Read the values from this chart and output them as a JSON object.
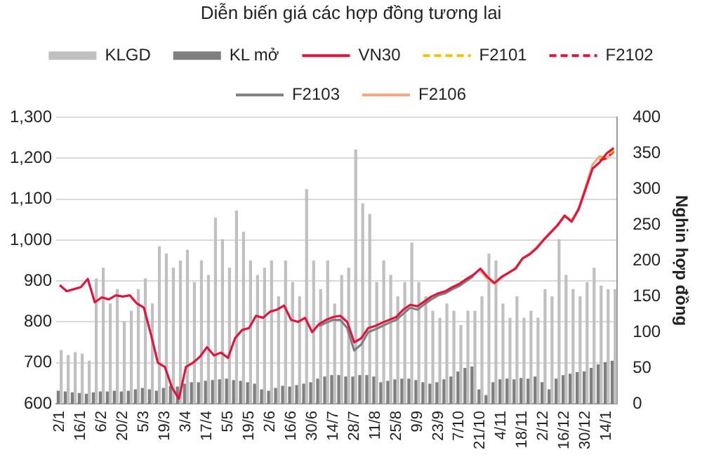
{
  "chart_data": {
    "type": "line",
    "title": "Diễn biến giá các hợp đồng tương lai",
    "y2label": "Nghin hợp đồng",
    "categories": [
      "2/1",
      null,
      null,
      "16/1",
      null,
      null,
      "6/2",
      null,
      null,
      "20/2",
      null,
      null,
      "5/3",
      null,
      null,
      "19/3",
      null,
      null,
      "3/4",
      null,
      null,
      "17/4",
      null,
      null,
      "5/5",
      null,
      null,
      "19/5",
      null,
      null,
      "2/6",
      null,
      null,
      "16/6",
      null,
      null,
      "30/6",
      null,
      null,
      "14/7",
      null,
      null,
      "28/7",
      null,
      null,
      "11/8",
      null,
      null,
      "25/8",
      null,
      null,
      "9/9",
      null,
      null,
      "23/9",
      null,
      null,
      "7/10",
      null,
      null,
      "21/10",
      null,
      null,
      "4/11",
      null,
      null,
      "18/11",
      null,
      null,
      "2/12",
      null,
      null,
      "16/12",
      null,
      null,
      "30/12",
      null,
      null,
      "14/1",
      null
    ],
    "series": [
      {
        "name": "KLGD",
        "type": "bar",
        "axis": "y2",
        "color": "#c0c0c0",
        "values": [
          75,
          68,
          72,
          70,
          60,
          175,
          190,
          140,
          160,
          115,
          130,
          160,
          175,
          140,
          220,
          210,
          190,
          200,
          215,
          170,
          200,
          180,
          260,
          230,
          190,
          270,
          240,
          200,
          180,
          190,
          200,
          150,
          200,
          170,
          150,
          300,
          200,
          160,
          200,
          140,
          180,
          190,
          355,
          280,
          265,
          170,
          200,
          180,
          150,
          170,
          225,
          170,
          150,
          130,
          120,
          140,
          130,
          110,
          130,
          130,
          150,
          210,
          200,
          140,
          120,
          150,
          120,
          130,
          120,
          160,
          150,
          230,
          180,
          160,
          150,
          170,
          190,
          165,
          160,
          160
        ]
      },
      {
        "name": "KL mở",
        "type": "bar",
        "axis": "y2",
        "color": "#7f7f7f",
        "values": [
          18,
          17,
          16,
          15,
          14,
          16,
          17,
          17,
          18,
          17,
          18,
          20,
          22,
          20,
          18,
          22,
          25,
          24,
          28,
          30,
          30,
          32,
          33,
          34,
          35,
          33,
          32,
          30,
          28,
          20,
          18,
          22,
          25,
          24,
          26,
          28,
          30,
          35,
          38,
          40,
          40,
          38,
          38,
          40,
          40,
          38,
          30,
          32,
          34,
          35,
          35,
          33,
          30,
          28,
          30,
          34,
          38,
          45,
          50,
          52,
          20,
          12,
          30,
          34,
          35,
          34,
          36,
          35,
          38,
          30,
          20,
          35,
          40,
          42,
          44,
          45,
          50,
          55,
          58,
          60
        ]
      },
      {
        "name": "VN30",
        "axis": "y",
        "color": "#e0143c",
        "line_style": "solid",
        "values": [
          890,
          875,
          880,
          885,
          905,
          848,
          860,
          855,
          865,
          862,
          865,
          845,
          835,
          770,
          700,
          690,
          640,
          612,
          690,
          700,
          715,
          738,
          718,
          725,
          712,
          760,
          780,
          785,
          815,
          810,
          825,
          830,
          840,
          805,
          800,
          810,
          775,
          795,
          805,
          812,
          815,
          800,
          750,
          760,
          785,
          790,
          798,
          805,
          812,
          830,
          842,
          838,
          850,
          862,
          870,
          875,
          885,
          893,
          905,
          915,
          930,
          910,
          895,
          910,
          920,
          930,
          955,
          965,
          980,
          1000,
          1018,
          1036,
          1060,
          1045,
          1075,
          1125,
          1175,
          1190,
          1212,
          1225
        ]
      },
      {
        "name": "F2101",
        "axis": "y",
        "color": "#f5c000",
        "line_style": "dashed",
        "values": [
          null,
          null,
          null,
          null,
          null,
          null,
          null,
          null,
          null,
          null,
          null,
          null,
          null,
          null,
          null,
          null,
          null,
          null,
          null,
          null,
          null,
          null,
          null,
          null,
          null,
          null,
          null,
          null,
          null,
          null,
          null,
          null,
          null,
          null,
          null,
          null,
          null,
          null,
          null,
          null,
          null,
          null,
          null,
          null,
          null,
          null,
          null,
          null,
          null,
          null,
          null,
          null,
          null,
          null,
          null,
          null,
          null,
          null,
          null,
          null,
          null,
          null,
          null,
          null,
          null,
          null,
          null,
          null,
          null,
          null,
          null,
          null,
          null,
          null,
          null,
          null,
          null,
          1200,
          1205,
          1220
        ]
      },
      {
        "name": "F2102",
        "axis": "y",
        "color": "#e0143c",
        "line_style": "dashed",
        "values": [
          null,
          null,
          null,
          null,
          null,
          null,
          null,
          null,
          null,
          null,
          null,
          null,
          null,
          null,
          null,
          null,
          null,
          null,
          null,
          null,
          null,
          null,
          null,
          null,
          null,
          null,
          null,
          null,
          null,
          null,
          null,
          null,
          null,
          null,
          null,
          null,
          null,
          null,
          null,
          null,
          null,
          null,
          null,
          null,
          null,
          null,
          null,
          null,
          null,
          null,
          null,
          null,
          null,
          null,
          null,
          null,
          null,
          null,
          null,
          null,
          null,
          null,
          null,
          null,
          null,
          null,
          null,
          null,
          null,
          null,
          null,
          null,
          null,
          null,
          null,
          null,
          null,
          1195,
          1200,
          1218
        ]
      },
      {
        "name": "F2103",
        "axis": "y",
        "color": "#808080",
        "line_style": "solid",
        "values": [
          null,
          null,
          null,
          null,
          null,
          null,
          null,
          null,
          null,
          null,
          null,
          null,
          null,
          null,
          null,
          null,
          null,
          null,
          null,
          null,
          null,
          null,
          null,
          null,
          null,
          null,
          null,
          null,
          null,
          null,
          null,
          null,
          null,
          null,
          null,
          null,
          null,
          790,
          798,
          805,
          805,
          785,
          730,
          745,
          775,
          782,
          790,
          798,
          805,
          820,
          835,
          830,
          843,
          855,
          865,
          870,
          880,
          888,
          900,
          912,
          null,
          null,
          null,
          null,
          null,
          null,
          null,
          null,
          null,
          null,
          null,
          null,
          null,
          null,
          null,
          null,
          null,
          null,
          null,
          null
        ]
      },
      {
        "name": "F2106",
        "axis": "y",
        "color": "#f4a582",
        "line_style": "solid",
        "values": [
          null,
          null,
          null,
          null,
          null,
          null,
          null,
          null,
          null,
          null,
          null,
          null,
          null,
          null,
          null,
          null,
          null,
          null,
          null,
          null,
          null,
          null,
          null,
          null,
          null,
          null,
          null,
          null,
          null,
          null,
          null,
          null,
          null,
          null,
          null,
          null,
          null,
          null,
          null,
          null,
          null,
          null,
          null,
          null,
          null,
          null,
          null,
          null,
          null,
          null,
          null,
          null,
          null,
          null,
          null,
          null,
          null,
          null,
          null,
          null,
          925,
          905,
          893,
          908,
          920,
          932,
          955,
          967,
          982,
          1002,
          1020,
          1038,
          1058,
          1048,
          1078,
          1130,
          1185,
          1205,
          1200,
          1215
        ]
      }
    ],
    "ylim": [
      600,
      1300
    ],
    "yticks": [
      600,
      700,
      800,
      900,
      {
        "value": 1000,
        "label": "1,000"
      },
      {
        "value": 1100,
        "label": "1,100"
      },
      {
        "value": 1200,
        "label": "1,200"
      },
      {
        "value": 1300,
        "label": "1,300"
      }
    ],
    "y2lim": [
      0,
      400
    ],
    "y2ticks": [
      0,
      50,
      100,
      150,
      200,
      250,
      300,
      350,
      400
    ],
    "grid": "y",
    "legend": "top",
    "marker": "none"
  }
}
